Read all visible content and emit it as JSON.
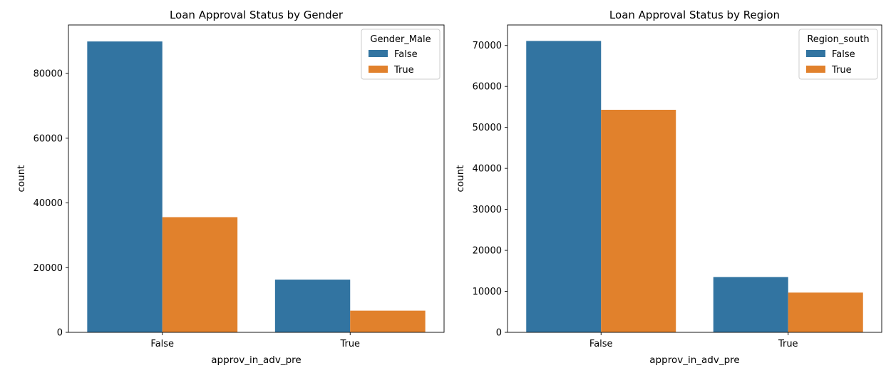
{
  "colors": {
    "series_false": "#3274a1",
    "series_true": "#e1812c"
  },
  "chart_data": [
    {
      "type": "bar",
      "title": "Loan Approval Status by Gender",
      "xlabel": "approv_in_adv_pre",
      "ylabel": "count",
      "categories": [
        "False",
        "True"
      ],
      "ylim": [
        0,
        95000
      ],
      "yticks": [
        0,
        20000,
        40000,
        60000,
        80000
      ],
      "grid": false,
      "legend": {
        "title": "Gender_Male",
        "placement": "top-right"
      },
      "series": [
        {
          "name": "False",
          "values": [
            89900,
            16300
          ]
        },
        {
          "name": "True",
          "values": [
            35600,
            6700
          ]
        }
      ]
    },
    {
      "type": "bar",
      "title": "Loan Approval Status by Region",
      "xlabel": "approv_in_adv_pre",
      "ylabel": "count",
      "categories": [
        "False",
        "True"
      ],
      "ylim": [
        0,
        75000
      ],
      "yticks": [
        0,
        10000,
        20000,
        30000,
        40000,
        50000,
        60000,
        70000
      ],
      "grid": false,
      "legend": {
        "title": "Region_south",
        "placement": "top-right"
      },
      "series": [
        {
          "name": "False",
          "values": [
            71100,
            13500
          ]
        },
        {
          "name": "True",
          "values": [
            54300,
            9700
          ]
        }
      ]
    }
  ]
}
